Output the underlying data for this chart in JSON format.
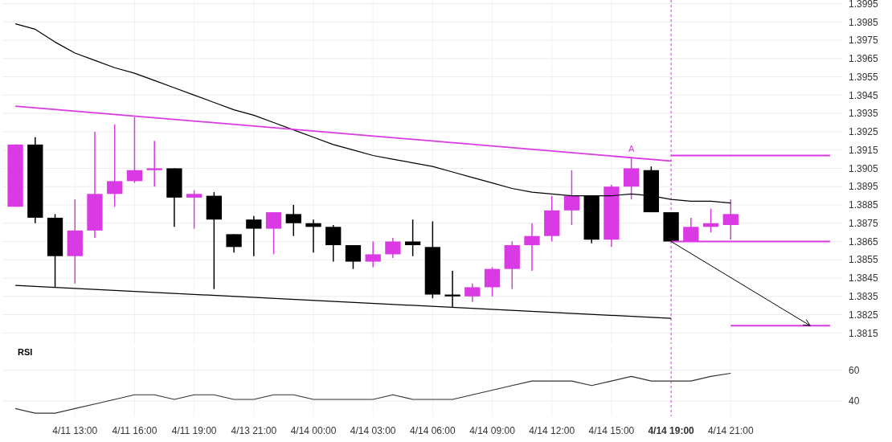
{
  "chart_data": [
    {
      "type": "candlestick",
      "tick_labels": "y",
      "grid": true,
      "categories": [
        null,
        null,
        null,
        "4/11 13:00",
        null,
        null,
        "4/11 16:00",
        null,
        null,
        "4/11 19:00",
        null,
        null,
        "4/13 21:00",
        null,
        null,
        "4/14 00:00",
        null,
        null,
        "4/14 03:00",
        null,
        null,
        "4/14 06:00",
        null,
        null,
        "4/14 09:00",
        null,
        null,
        "4/14 12:00",
        null,
        null,
        "4/14 15:00",
        null,
        null,
        "4/14 19:00",
        null,
        null,
        "4/14 21:00",
        null,
        null,
        null,
        null,
        null
      ],
      "ohlc": [
        [
          1.3884,
          1.3918,
          1.3884,
          1.3918
        ],
        [
          1.3918,
          1.3922,
          1.3875,
          1.3878
        ],
        [
          1.3878,
          1.388,
          1.384,
          1.3857
        ],
        [
          1.3857,
          1.3888,
          1.3842,
          1.3871
        ],
        [
          1.3871,
          1.3925,
          1.3867,
          1.3891
        ],
        [
          1.3891,
          1.3929,
          1.3884,
          1.3898
        ],
        [
          1.3898,
          1.3933,
          1.3897,
          1.3904
        ],
        [
          1.3904,
          1.392,
          1.3895,
          1.3905
        ],
        [
          1.3905,
          1.3905,
          1.3873,
          1.3889
        ],
        [
          1.3889,
          1.3893,
          1.3872,
          1.3891
        ],
        [
          1.389,
          1.3892,
          1.3839,
          1.3877
        ],
        [
          1.3869,
          1.3869,
          1.3859,
          1.3862
        ],
        [
          1.3877,
          1.3879,
          1.3857,
          1.3872
        ],
        [
          1.3872,
          1.3881,
          1.3858,
          1.3881
        ],
        [
          1.388,
          1.3885,
          1.3868,
          1.3875
        ],
        [
          1.3875,
          1.3877,
          1.3859,
          1.3873
        ],
        [
          1.3873,
          1.3874,
          1.3854,
          1.3863
        ],
        [
          1.3863,
          1.3863,
          1.385,
          1.3854
        ],
        [
          1.3854,
          1.3865,
          1.3851,
          1.3858
        ],
        [
          1.3858,
          1.3867,
          1.3856,
          1.3865
        ],
        [
          1.3865,
          1.3877,
          1.3857,
          1.3863
        ],
        [
          1.3862,
          1.3876,
          1.3834,
          1.3836
        ],
        [
          1.3836,
          1.3849,
          1.3829,
          1.3835
        ],
        [
          1.3835,
          1.3842,
          1.3832,
          1.384
        ],
        [
          1.384,
          1.3851,
          1.3835,
          1.385
        ],
        [
          1.385,
          1.3865,
          1.3839,
          1.3863
        ],
        [
          1.3863,
          1.3875,
          1.3849,
          1.3868
        ],
        [
          1.3868,
          1.389,
          1.3865,
          1.3882
        ],
        [
          1.3882,
          1.3904,
          1.3874,
          1.389
        ],
        [
          1.389,
          1.389,
          1.3864,
          1.3866
        ],
        [
          1.3866,
          1.3896,
          1.3862,
          1.3895
        ],
        [
          1.3895,
          1.3911,
          1.3888,
          1.3905
        ],
        [
          1.3904,
          1.3906,
          1.3881,
          1.3881
        ],
        [
          1.3881,
          1.3881,
          1.3865,
          1.3865
        ],
        [
          1.3865,
          1.3878,
          1.3865,
          1.3873
        ],
        [
          1.3873,
          1.3883,
          1.387,
          1.3875
        ],
        [
          1.3874,
          1.3888,
          1.3866,
          1.388
        ],
        null,
        null,
        null,
        null,
        null
      ],
      "colors": [
        "#d93ae3",
        "#000000",
        "#000000",
        "#d93ae3",
        "#d93ae3",
        "#d93ae3",
        "#d93ae3",
        "#d93ae3",
        "#000000",
        "#d93ae3",
        "#000000",
        "#000000",
        "#000000",
        "#d93ae3",
        "#000000",
        "#000000",
        "#000000",
        "#000000",
        "#d93ae3",
        "#d93ae3",
        "#000000",
        "#000000",
        "#000000",
        "#d93ae3",
        "#d93ae3",
        "#d93ae3",
        "#d93ae3",
        "#d93ae3",
        "#d93ae3",
        "#000000",
        "#d93ae3",
        "#d93ae3",
        "#000000",
        "#000000",
        "#d93ae3",
        "#d93ae3",
        "#d93ae3",
        null,
        null,
        null,
        null,
        null
      ],
      "series": [
        {
          "type": "line",
          "color": "#000000",
          "values": [
            1.3984,
            1.3981,
            1.3974,
            1.3968,
            1.3964,
            1.396,
            1.3957,
            1.3953,
            1.3949,
            1.3945,
            1.3941,
            1.3937,
            1.3934,
            1.393,
            1.3926,
            1.3922,
            1.3918,
            1.3915,
            1.3912,
            1.391,
            1.3908,
            1.3906,
            1.3903,
            1.39,
            1.3897,
            1.3894,
            1.3892,
            1.3891,
            1.389,
            1.389,
            1.389,
            1.3891,
            1.389,
            1.3888,
            1.3887,
            1.3887,
            1.3886,
            null,
            null,
            null,
            null,
            null
          ]
        },
        {
          "type": "line",
          "color": "#000000",
          "values": [
            1.3841,
            null,
            null,
            null,
            null,
            null,
            null,
            null,
            null,
            null,
            null,
            null,
            null,
            null,
            null,
            null,
            null,
            null,
            null,
            null,
            null,
            null,
            null,
            null,
            null,
            null,
            null,
            null,
            null,
            null,
            null,
            null,
            null,
            1.3823,
            null,
            null,
            null,
            null,
            null,
            null,
            null,
            null
          ]
        },
        {
          "type": "line",
          "color": "#d93ae3",
          "values": [
            1.3939,
            null,
            null,
            null,
            null,
            null,
            null,
            null,
            null,
            null,
            null,
            null,
            null,
            null,
            null,
            null,
            null,
            null,
            null,
            null,
            null,
            null,
            null,
            null,
            null,
            null,
            null,
            null,
            null,
            null,
            null,
            null,
            null,
            1.3909,
            null,
            null,
            null,
            null,
            null,
            null,
            null,
            null
          ]
        },
        {
          "type": "line",
          "color": "#d93ae3",
          "values": [
            null,
            null,
            null,
            null,
            null,
            null,
            null,
            null,
            null,
            null,
            null,
            null,
            null,
            null,
            null,
            null,
            null,
            null,
            null,
            null,
            null,
            null,
            null,
            null,
            null,
            null,
            null,
            null,
            null,
            null,
            null,
            null,
            null,
            1.3912,
            null,
            null,
            null,
            null,
            null,
            null,
            null,
            1.3912
          ]
        },
        {
          "type": "line",
          "color": "#d93ae3",
          "values": [
            null,
            null,
            null,
            null,
            null,
            null,
            null,
            null,
            null,
            null,
            null,
            null,
            null,
            null,
            null,
            null,
            null,
            null,
            null,
            null,
            null,
            null,
            null,
            null,
            null,
            null,
            null,
            null,
            null,
            null,
            null,
            null,
            null,
            1.3865,
            null,
            null,
            null,
            null,
            null,
            null,
            null,
            1.3865
          ]
        },
        {
          "type": "line",
          "color": "#d93ae3",
          "values": [
            null,
            null,
            null,
            null,
            null,
            null,
            null,
            null,
            null,
            null,
            null,
            null,
            null,
            null,
            null,
            null,
            null,
            null,
            null,
            null,
            null,
            null,
            null,
            null,
            null,
            null,
            null,
            null,
            null,
            null,
            null,
            null,
            null,
            null,
            null,
            null,
            1.3819,
            null,
            null,
            null,
            null,
            1.3819
          ]
        }
      ],
      "ylim": [
        1.3809,
        1.3997
      ],
      "yticks": [
        1.3815,
        1.3825,
        1.3835,
        1.3845,
        1.3855,
        1.3865,
        1.3875,
        1.3885,
        1.3895,
        1.3905,
        1.3915,
        1.3925,
        1.3935,
        1.3945,
        1.3955,
        1.3965,
        1.3975,
        1.3985,
        1.3995
      ],
      "ref_lines": [
        {
          "axis": "x",
          "value": "4/14 19:00",
          "color": "#d93ae3",
          "line_style": "dashed"
        }
      ],
      "annotations": [
        {
          "text": "A",
          "y": 1.3913
        }
      ]
    },
    {
      "type": "line",
      "title": "RSI",
      "grid": true,
      "categories": [
        null,
        null,
        null,
        "4/11 13:00",
        null,
        null,
        "4/11 16:00",
        null,
        null,
        "4/11 19:00",
        null,
        null,
        "4/13 21:00",
        null,
        null,
        "4/14 00:00",
        null,
        null,
        "4/14 03:00",
        null,
        null,
        "4/14 06:00",
        null,
        null,
        "4/14 09:00",
        null,
        null,
        "4/14 12:00",
        null,
        null,
        "4/14 15:00",
        null,
        null,
        "4/14 19:00",
        null,
        null,
        "4/14 21:00",
        null,
        null,
        null,
        null,
        null
      ],
      "series": [
        {
          "color": "#333333",
          "values": [
            35,
            32,
            32,
            35,
            38,
            41,
            44,
            44,
            41,
            44,
            44,
            41,
            41,
            44,
            44,
            41,
            41,
            41,
            41,
            44,
            41,
            41,
            41,
            44,
            47,
            50,
            53,
            53,
            53,
            50,
            53,
            56,
            53,
            53,
            53,
            56,
            58,
            null,
            null,
            null,
            null,
            null
          ]
        }
      ],
      "ylim": [
        30,
        75
      ],
      "yticks": [
        40,
        60
      ],
      "ref_lines": [
        {
          "axis": "x",
          "value": "4/14 19:00",
          "color": "#d93ae3",
          "line_style": "dashed"
        }
      ]
    }
  ]
}
